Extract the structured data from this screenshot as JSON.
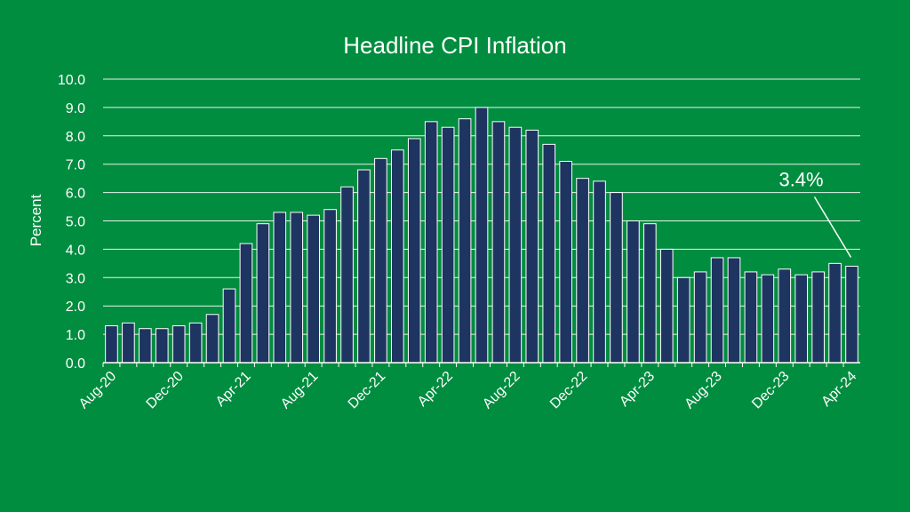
{
  "chart_data": {
    "type": "bar",
    "title": "Headline CPI Inflation",
    "xlabel": "",
    "ylabel": "Percent",
    "ylim": [
      0,
      10
    ],
    "yticks": [
      "0.0",
      "1.0",
      "2.0",
      "3.0",
      "4.0",
      "5.0",
      "6.0",
      "7.0",
      "8.0",
      "9.0",
      "10.0"
    ],
    "grid": true,
    "categories": [
      "Aug-20",
      "Sep-20",
      "Oct-20",
      "Nov-20",
      "Dec-20",
      "Jan-21",
      "Feb-21",
      "Mar-21",
      "Apr-21",
      "May-21",
      "Jun-21",
      "Jul-21",
      "Aug-21",
      "Sep-21",
      "Oct-21",
      "Nov-21",
      "Dec-21",
      "Jan-22",
      "Feb-22",
      "Mar-22",
      "Apr-22",
      "May-22",
      "Jun-22",
      "Jul-22",
      "Aug-22",
      "Sep-22",
      "Oct-22",
      "Nov-22",
      "Dec-22",
      "Jan-23",
      "Feb-23",
      "Mar-23",
      "Apr-23",
      "May-23",
      "Jun-23",
      "Jul-23",
      "Aug-23",
      "Sep-23",
      "Oct-23",
      "Nov-23",
      "Dec-23",
      "Jan-24",
      "Feb-24",
      "Mar-24",
      "Apr-24"
    ],
    "values": [
      1.3,
      1.4,
      1.2,
      1.2,
      1.3,
      1.4,
      1.7,
      2.6,
      4.2,
      4.9,
      5.3,
      5.3,
      5.2,
      5.4,
      6.2,
      6.8,
      7.2,
      7.5,
      7.9,
      8.5,
      8.3,
      8.6,
      9.0,
      8.5,
      8.3,
      8.2,
      7.7,
      7.1,
      6.5,
      6.4,
      6.0,
      5.0,
      4.9,
      4.0,
      3.0,
      3.2,
      3.7,
      3.7,
      3.2,
      3.1,
      3.3,
      3.1,
      3.2,
      3.5,
      3.4
    ],
    "xtick_labels": [
      "Aug-20",
      "Dec-20",
      "Apr-21",
      "Aug-21",
      "Dec-21",
      "Apr-22",
      "Aug-22",
      "Dec-22",
      "Apr-23",
      "Aug-23",
      "Dec-23",
      "Apr-24"
    ],
    "annotation": {
      "text": "3.4%",
      "category": "Apr-24"
    }
  }
}
